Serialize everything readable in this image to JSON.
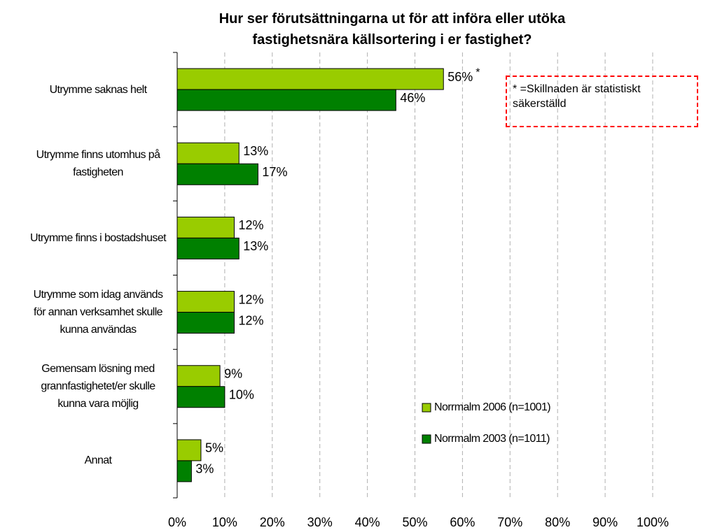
{
  "chart_data": {
    "type": "hbar",
    "title": "Hur ser förutsättningarna ut för att införa eller utöka fastighetsnära källsortering i er fastighet?",
    "categories": [
      "Utrymme saknas helt",
      "Utrymme finns utomhus på fastigheten",
      "Utrymme finns i bostadshuset",
      "Utrymme som idag används för annan verksamhet skulle kunna användas",
      "Gemensam lösning med grannfastighetet/er skulle kunna vara möjlig",
      "Annat"
    ],
    "series": [
      {
        "name": "Norrmalm 2006 (n=1001)",
        "color": "#99cc00",
        "values": [
          56,
          13,
          12,
          12,
          9,
          5
        ],
        "value_labels": [
          "56%",
          "13%",
          "12%",
          "12%",
          "9%",
          "5%"
        ],
        "value_marks": [
          "*",
          null,
          null,
          null,
          null,
          null
        ]
      },
      {
        "name": "Norrmalm 2003 (n=1011)",
        "color": "#008000",
        "values": [
          46,
          17,
          13,
          12,
          10,
          3
        ],
        "value_labels": [
          "46%",
          "17%",
          "13%",
          "12%",
          "10%",
          "3%"
        ]
      }
    ],
    "xlim": [
      0,
      100
    ],
    "xticks": [
      {
        "value": 0,
        "label": "0%"
      },
      {
        "value": 10,
        "label": "10%"
      },
      {
        "value": 20,
        "label": "20%"
      },
      {
        "value": 30,
        "label": "30%"
      },
      {
        "value": 40,
        "label": "40%"
      },
      {
        "value": 50,
        "label": "50%"
      },
      {
        "value": 60,
        "label": "60%"
      },
      {
        "value": 70,
        "label": "70%"
      },
      {
        "value": 80,
        "label": "80%"
      },
      {
        "value": 90,
        "label": "90%"
      },
      {
        "value": 100,
        "label": "100%"
      }
    ],
    "grid": true,
    "annotation": "* =Skillnaden är statistiskt säkerställd"
  }
}
